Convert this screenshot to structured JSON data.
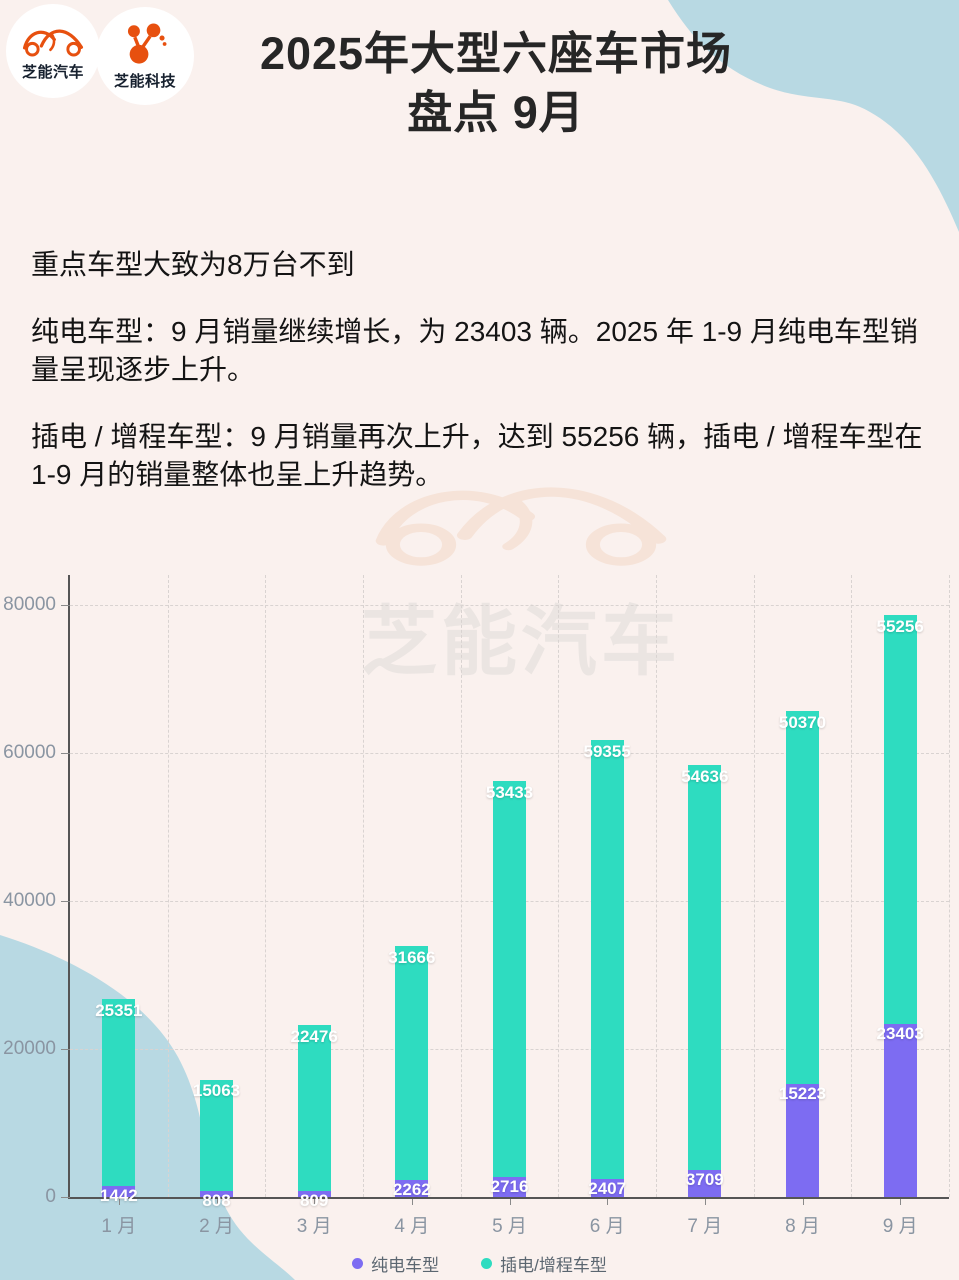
{
  "header": {
    "logo_auto_label": "芝能汽车",
    "logo_tech_label": "芝能科技",
    "title_line1": "2025年大型六座车市场",
    "title_line2": "盘点 9月"
  },
  "summary": {
    "p1": "重点车型大致为8万台不到",
    "p2": "纯电车型：9 月销量继续增长，为 23403 辆。2025 年 1-9 月纯电车型销量呈现逐步上升。",
    "p3": "插电 / 增程车型：9 月销量再次上升，达到 55256 辆，插电 / 增程车型在 1-9 月的销量整体也呈上升趋势。"
  },
  "watermark": {
    "text": "芝能汽车"
  },
  "chart_data": {
    "type": "bar",
    "stacked": true,
    "categories": [
      "1 月",
      "2 月",
      "3 月",
      "4 月",
      "5 月",
      "6 月",
      "7 月",
      "8 月",
      "9 月"
    ],
    "series": [
      {
        "name": "纯电车型",
        "color": "#7d6cf2",
        "values": [
          1442,
          808,
          809,
          2262,
          2716,
          2407,
          3709,
          15223,
          23403
        ]
      },
      {
        "name": "插电/增程车型",
        "color": "#2edcc0",
        "values": [
          25351,
          15063,
          22476,
          31666,
          53433,
          59355,
          54636,
          50370,
          55256
        ]
      }
    ],
    "yticks": [
      0,
      20000,
      40000,
      60000,
      80000
    ],
    "ylim": [
      0,
      84000
    ],
    "grid": true,
    "legend_position": "bottom",
    "title": "",
    "xlabel": "",
    "ylabel": ""
  },
  "colors": {
    "background": "#faf1ee",
    "blob_blue": "#b8d9e3",
    "logo_orange": "#e7500f",
    "bev_purple": "#7d6cf2",
    "phev_teal": "#2edcc0",
    "axis_text": "#8a95a2"
  }
}
